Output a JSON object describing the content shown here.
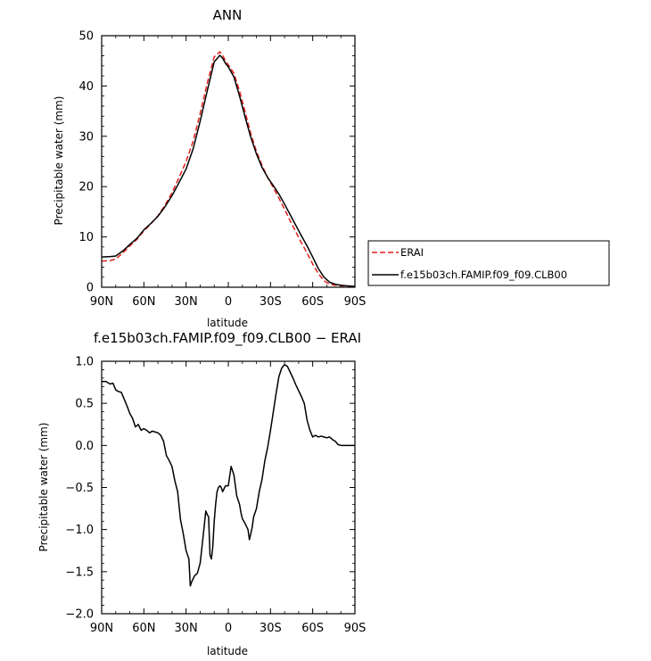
{
  "chart_data": [
    {
      "type": "line",
      "title": "ANN",
      "xlabel": "latitude",
      "ylabel": "Precipitable water (mm)",
      "xlim": [
        90,
        -90
      ],
      "ylim": [
        0,
        50
      ],
      "xticks": [
        90,
        60,
        30,
        0,
        -30,
        -60,
        -90
      ],
      "xtick_labels": [
        "90N",
        "60N",
        "30N",
        "0",
        "30S",
        "60S",
        "90S"
      ],
      "yticks": [
        0,
        10,
        20,
        30,
        40,
        50
      ],
      "ytick_labels": [
        "0",
        "10",
        "20",
        "30",
        "40",
        "50"
      ],
      "legend_position": "right-middle",
      "series": [
        {
          "name": "ERAI",
          "color": "#e0201b",
          "dash": "dashed",
          "x": [
            90,
            84,
            80,
            75,
            70,
            65,
            60,
            55,
            50,
            45,
            40,
            35,
            30,
            25,
            20,
            15,
            10,
            6,
            4,
            2,
            0,
            -4,
            -8,
            -12,
            -16,
            -20,
            -24,
            -28,
            -32,
            -36,
            -40,
            -44,
            -48,
            -52,
            -56,
            -60,
            -64,
            -68,
            -72,
            -76,
            -80,
            -84,
            -88,
            -90
          ],
          "y": [
            5.2,
            5.3,
            5.6,
            6.8,
            8.2,
            9.5,
            11.2,
            12.6,
            14.2,
            16.3,
            18.8,
            21.8,
            25.0,
            29.0,
            34.5,
            40.5,
            45.8,
            46.8,
            46.1,
            45.0,
            44.2,
            42.5,
            39.0,
            34.8,
            30.5,
            27.0,
            24.2,
            21.8,
            19.8,
            17.7,
            15.5,
            13.2,
            11.0,
            8.8,
            6.8,
            4.6,
            2.7,
            1.3,
            0.6,
            0.4,
            0.3,
            0.2,
            0.1,
            0.1
          ]
        },
        {
          "name": "f.e15b03ch.FAMIP.f09_f09.CLB00",
          "color": "#000000",
          "dash": "solid",
          "x": [
            90,
            84,
            80,
            75,
            70,
            65,
            60,
            55,
            50,
            45,
            40,
            35,
            30,
            25,
            20,
            15,
            10,
            6,
            4,
            2,
            0,
            -4,
            -8,
            -12,
            -16,
            -20,
            -24,
            -28,
            -32,
            -36,
            -40,
            -44,
            -48,
            -52,
            -56,
            -60,
            -64,
            -68,
            -72,
            -76,
            -80,
            -84,
            -88,
            -90
          ],
          "y": [
            6.0,
            6.1,
            6.2,
            7.2,
            8.5,
            9.7,
            11.4,
            12.7,
            14.1,
            16.0,
            18.2,
            20.8,
            23.5,
            27.5,
            33.0,
            39.0,
            44.8,
            46.1,
            45.5,
            44.5,
            43.8,
            41.8,
            38.0,
            33.8,
            29.8,
            26.5,
            23.8,
            21.8,
            20.2,
            18.5,
            16.5,
            14.4,
            12.3,
            10.2,
            8.2,
            6.0,
            3.7,
            2.0,
            1.0,
            0.6,
            0.4,
            0.3,
            0.2,
            0.2
          ]
        }
      ]
    },
    {
      "type": "line",
      "title": "f.e15b03ch.FAMIP.f09_f09.CLB00 − ERAI",
      "xlabel": "latitude",
      "ylabel": "Precipitable water (mm)",
      "xlim": [
        90,
        -90
      ],
      "ylim": [
        -2.0,
        1.0
      ],
      "xticks": [
        90,
        60,
        30,
        0,
        -30,
        -60,
        -90
      ],
      "xtick_labels": [
        "90N",
        "60N",
        "30N",
        "0",
        "30S",
        "60S",
        "90S"
      ],
      "yticks": [
        1.0,
        0.5,
        0.0,
        -0.5,
        -1.0,
        -1.5,
        -2.0
      ],
      "ytick_labels": [
        "1.0",
        "0.5",
        "0.0",
        "−0.5",
        "−1.0",
        "−1.5",
        "−2.0"
      ],
      "series": [
        {
          "color": "#000000",
          "dash": "solid",
          "x": [
            90,
            87,
            84,
            82,
            80,
            78,
            76,
            74,
            72,
            70,
            68,
            66,
            64,
            62,
            60,
            58,
            56,
            54,
            52,
            50,
            48,
            46,
            44,
            42,
            40,
            38,
            36,
            34,
            32,
            30,
            28,
            27,
            26,
            24,
            22,
            20,
            18,
            16,
            15,
            14,
            13,
            12,
            11,
            10,
            9,
            8,
            7,
            6,
            5,
            4,
            2,
            0,
            -2,
            -4,
            -6,
            -7,
            -8,
            -9,
            -10,
            -12,
            -14,
            -15,
            -16,
            -17,
            -18,
            -20,
            -22,
            -24,
            -26,
            -28,
            -30,
            -32,
            -34,
            -36,
            -38,
            -40,
            -42,
            -44,
            -46,
            -48,
            -50,
            -52,
            -54,
            -56,
            -58,
            -60,
            -62,
            -64,
            -66,
            -68,
            -70,
            -72,
            -74,
            -76,
            -78,
            -80,
            -82,
            -84,
            -86,
            -88,
            -90
          ],
          "y": [
            0.76,
            0.76,
            0.73,
            0.74,
            0.66,
            0.64,
            0.63,
            0.55,
            0.47,
            0.38,
            0.32,
            0.22,
            0.25,
            0.18,
            0.2,
            0.18,
            0.15,
            0.17,
            0.16,
            0.15,
            0.12,
            0.05,
            -0.12,
            -0.18,
            -0.25,
            -0.42,
            -0.55,
            -0.88,
            -1.05,
            -1.25,
            -1.35,
            -1.67,
            -1.62,
            -1.55,
            -1.52,
            -1.4,
            -1.1,
            -0.78,
            -0.82,
            -0.85,
            -1.3,
            -1.35,
            -1.2,
            -0.9,
            -0.7,
            -0.55,
            -0.5,
            -0.48,
            -0.5,
            -0.55,
            -0.48,
            -0.48,
            -0.25,
            -0.35,
            -0.6,
            -0.65,
            -0.7,
            -0.8,
            -0.87,
            -0.93,
            -1.0,
            -1.12,
            -1.05,
            -0.97,
            -0.85,
            -0.75,
            -0.55,
            -0.4,
            -0.18,
            -0.02,
            0.18,
            0.4,
            0.62,
            0.82,
            0.92,
            0.96,
            0.94,
            0.87,
            0.8,
            0.72,
            0.65,
            0.58,
            0.5,
            0.3,
            0.18,
            0.1,
            0.12,
            0.1,
            0.11,
            0.1,
            0.09,
            0.1,
            0.07,
            0.05,
            0.01,
            0.0,
            0.0,
            0.0,
            0.0,
            0.0,
            0.0
          ]
        }
      ]
    }
  ]
}
